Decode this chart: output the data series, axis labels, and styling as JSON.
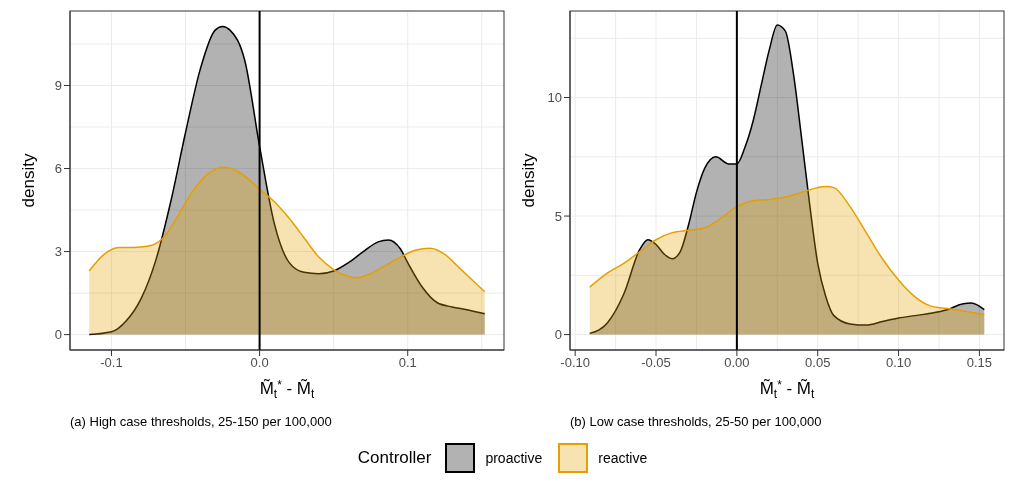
{
  "chart_data": [
    {
      "type": "area",
      "xlabel": "M̃$_{t}$$^{*}$ - M̃$_{t}$",
      "ylabel": "density",
      "annotations": [
        "(a) High case thresholds, 25-150 per 100,000"
      ],
      "xlim": [
        -0.128,
        0.165
      ],
      "xticks": [
        {
          "value": -0.1,
          "label": "-0.1"
        },
        {
          "value": 0,
          "label": "0.0"
        },
        {
          "value": 0.1,
          "label": "0.1"
        }
      ],
      "ylim": [
        -0.556,
        11.69
      ],
      "yticks": [
        0,
        3,
        6,
        9
      ],
      "grid": true,
      "legend": "bottom",
      "legend_title": "Controller",
      "ref_lines": [
        {
          "axis": "x",
          "value": 0,
          "color": "#000000"
        }
      ],
      "series": [
        {
          "name": "proactive",
          "color": "#000000",
          "x": [
            -0.115,
            -0.1,
            -0.09,
            -0.08,
            -0.07,
            -0.06,
            -0.05,
            -0.04,
            -0.03,
            -0.025,
            -0.02,
            -0.01,
            0,
            0.01,
            0.02,
            0.03,
            0.04,
            0.05,
            0.06,
            0.07,
            0.08,
            0.087,
            0.095,
            0.1,
            0.11,
            0.12,
            0.13,
            0.14,
            0.152
          ],
          "values": [
            0,
            0.1,
            0.5,
            1.3,
            2.7,
            4.8,
            7.3,
            9.6,
            11,
            11.13,
            11,
            9.9,
            6.8,
            4,
            2.6,
            2.25,
            2.2,
            2.3,
            2.6,
            3,
            3.35,
            3.42,
            3.1,
            2.6,
            1.7,
            1.15,
            1,
            0.9,
            0.75
          ]
        },
        {
          "name": "reactive",
          "color": "#e69f00",
          "x": [
            -0.115,
            -0.105,
            -0.095,
            -0.085,
            -0.075,
            -0.065,
            -0.055,
            -0.045,
            -0.035,
            -0.025,
            -0.015,
            -0.005,
            0,
            0.01,
            0.02,
            0.03,
            0.04,
            0.05,
            0.06,
            0.065,
            0.075,
            0.085,
            0.095,
            0.105,
            0.115,
            0.125,
            0.135,
            0.145,
            0.152
          ],
          "values": [
            2.3,
            2.9,
            3.15,
            3.15,
            3.2,
            3.5,
            4.3,
            5.2,
            5.8,
            6.05,
            5.9,
            5.5,
            5.25,
            4.8,
            4.2,
            3.5,
            2.8,
            2.35,
            2.1,
            2.05,
            2.2,
            2.5,
            2.8,
            3.05,
            3.12,
            2.9,
            2.4,
            1.9,
            1.55
          ]
        }
      ]
    },
    {
      "type": "area",
      "xlabel": "M̃$_{t}$$^{*}$ - M̃$_{t}$",
      "ylabel": "density",
      "annotations": [
        "(b) Low case thresholds, 25-50 per 100,000"
      ],
      "xlim": [
        -0.1032,
        0.1652
      ],
      "xticks": [
        {
          "value": -0.1,
          "label": "-0.10"
        },
        {
          "value": -0.05,
          "label": "-0.05"
        },
        {
          "value": 0,
          "label": "0.00"
        },
        {
          "value": 0.05,
          "label": "0.05"
        },
        {
          "value": 0.1,
          "label": "0.10"
        },
        {
          "value": 0.15,
          "label": "0.15"
        }
      ],
      "ylim": [
        -0.65,
        13.65
      ],
      "yticks": [
        0,
        5,
        10
      ],
      "grid": true,
      "ref_lines": [
        {
          "axis": "x",
          "value": 0,
          "color": "#000000"
        }
      ],
      "legend": "bottom",
      "series": [
        {
          "name": "proactive",
          "color": "#000000",
          "x": [
            -0.091,
            -0.08,
            -0.07,
            -0.06,
            -0.055,
            -0.05,
            -0.045,
            -0.04,
            -0.035,
            -0.03,
            -0.025,
            -0.02,
            -0.013,
            -0.005,
            0,
            0.005,
            0.01,
            0.015,
            0.02,
            0.025,
            0.03,
            0.035,
            0.04,
            0.045,
            0.05,
            0.055,
            0.06,
            0.07,
            0.08,
            0.09,
            0.1,
            0.11,
            0.12,
            0.13,
            0.14,
            0.145,
            0.153
          ],
          "values": [
            0.05,
            0.5,
            1.7,
            3.6,
            4,
            3.8,
            3.4,
            3.2,
            3.5,
            4.6,
            6,
            7,
            7.5,
            7.2,
            7.2,
            7.9,
            9,
            10.5,
            12,
            13.06,
            12.8,
            11,
            8.3,
            5.5,
            3,
            1.6,
            0.8,
            0.45,
            0.4,
            0.55,
            0.7,
            0.8,
            0.9,
            1.05,
            1.3,
            1.33,
            1.05
          ]
        },
        {
          "name": "reactive",
          "color": "#e69f00",
          "x": [
            -0.091,
            -0.08,
            -0.07,
            -0.06,
            -0.05,
            -0.04,
            -0.03,
            -0.02,
            -0.01,
            0,
            0.01,
            0.02,
            0.03,
            0.04,
            0.05,
            0.055,
            0.06,
            0.07,
            0.08,
            0.09,
            0.1,
            0.11,
            0.12,
            0.13,
            0.14,
            0.153
          ],
          "values": [
            2,
            2.6,
            3,
            3.5,
            4,
            4.3,
            4.4,
            4.5,
            4.9,
            5.4,
            5.65,
            5.7,
            5.8,
            6,
            6.2,
            6.25,
            6.2,
            5.4,
            4.3,
            3.2,
            2.3,
            1.6,
            1.2,
            1.1,
            1,
            0.85
          ]
        }
      ]
    }
  ]
}
